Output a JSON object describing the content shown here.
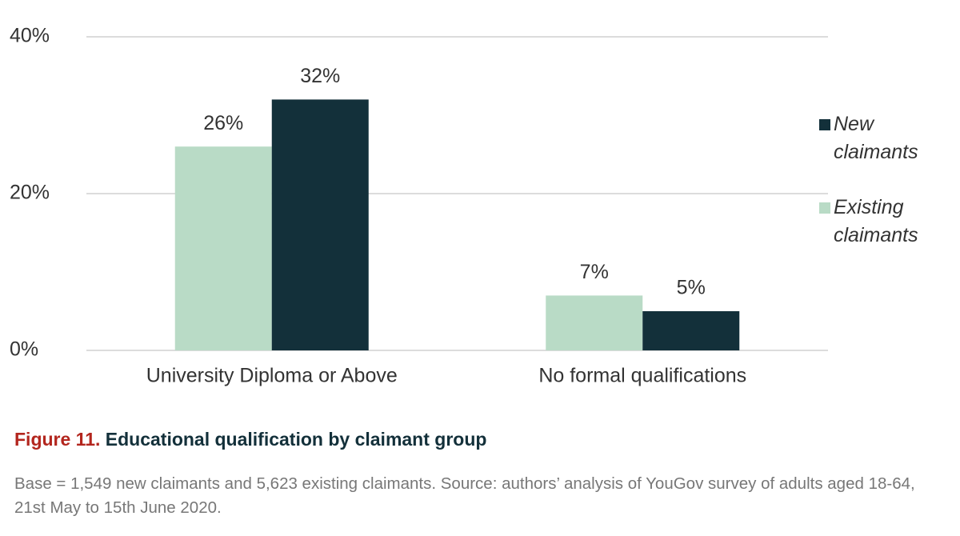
{
  "chart_data": {
    "type": "bar",
    "figure_label": "Figure 11.",
    "title": "Educational qualification by claimant group",
    "note": "Base = 1,549 new claimants and 5,623 existing claimants. Source: authors’ analysis of YouGov survey of adults aged 18-64, 21st May to 15th June 2020.",
    "categories": [
      "University Diploma or Above",
      "No formal qualifications"
    ],
    "series": [
      {
        "name": "Existing claimants",
        "color": "#b9dbc6",
        "values": [
          26,
          7
        ],
        "value_labels": [
          "26%",
          "7%"
        ]
      },
      {
        "name": "New claimants",
        "color": "#13303a",
        "values": [
          32,
          5
        ],
        "value_labels": [
          "32%",
          "5%"
        ]
      }
    ],
    "ylim": [
      0,
      40
    ],
    "yticks": [
      {
        "value": 0,
        "label": "0%"
      },
      {
        "value": 20,
        "label": "20%"
      },
      {
        "value": 40,
        "label": "40%"
      }
    ],
    "grid": true,
    "legend": "right"
  }
}
